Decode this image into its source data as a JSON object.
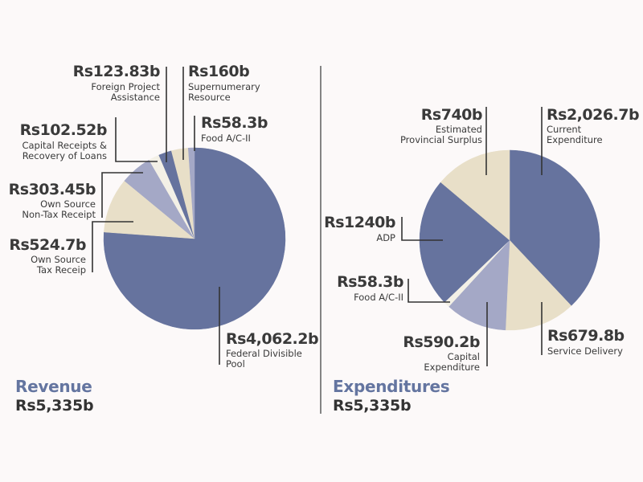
{
  "chart_data": [
    {
      "type": "pie",
      "title": "Revenue",
      "total_label": "Rs5,335b",
      "unit": "Rs billion",
      "start": "12 o'clock, clockwise",
      "slices": [
        {
          "name": "Federal Divisible Pool",
          "value": 4062.2,
          "label": "Rs4,062.2b",
          "desc": [
            "Federal Divisible",
            "Pool"
          ],
          "color": "#66739e"
        },
        {
          "name": "Own Source Tax Receip",
          "value": 524.7,
          "label": "Rs524.7b",
          "desc": [
            "Own Source",
            "Tax Receip"
          ],
          "color": "#e8dfc8"
        },
        {
          "name": "Own Source Non-Tax Receipt",
          "value": 303.45,
          "label": "Rs303.45b",
          "desc": [
            "Own Source",
            "Non-Tax Receipt"
          ],
          "color": "#a4a8c6"
        },
        {
          "name": "Capital Receipts & Recovery of Loans",
          "value": 102.52,
          "label": "Rs102.52b",
          "desc": [
            "Capital Receipts &",
            "Recovery of Loans"
          ],
          "color": "#f3f0e6"
        },
        {
          "name": "Foreign Project Assistance",
          "value": 123.83,
          "label": "Rs123.83b",
          "desc": [
            "Foreign Project",
            "Assistance"
          ],
          "color": "#66739e"
        },
        {
          "name": "Supernumerary Resource",
          "value": 160,
          "label": "Rs160b",
          "desc": [
            "Supernumerary",
            "Resource"
          ],
          "color": "#e8dfc8"
        },
        {
          "name": "Food A/C-II",
          "value": 58.3,
          "label": "Rs58.3b",
          "desc": [
            "Food A/C-II"
          ],
          "color": "#a4a8c6"
        }
      ]
    },
    {
      "type": "pie",
      "title": "Expenditures",
      "total_label": "Rs5,335b",
      "unit": "Rs billion",
      "start": "12 o'clock, clockwise",
      "slices": [
        {
          "name": "Current Expenditure",
          "value": 2026.7,
          "label": "Rs2,026.7b",
          "desc": [
            "Current",
            "Expenditure"
          ],
          "color": "#66739e"
        },
        {
          "name": "Service Delivery",
          "value": 679.8,
          "label": "Rs679.8b",
          "desc": [
            "Service Delivery"
          ],
          "color": "#e8dfc8"
        },
        {
          "name": "Capital Expenditure",
          "value": 590.2,
          "label": "Rs590.2b",
          "desc": [
            "Capital",
            "Expenditure"
          ],
          "color": "#a4a8c6"
        },
        {
          "name": "Food A/C-II",
          "value": 58.3,
          "label": "Rs58.3b",
          "desc": [
            "Food A/C-II"
          ],
          "color": "#f3f0e6"
        },
        {
          "name": "ADP",
          "value": 1240,
          "label": "Rs1240b",
          "desc": [
            "ADP"
          ],
          "color": "#66739e"
        },
        {
          "name": "Estimated Provincial Surplus",
          "value": 740,
          "label": "Rs740b",
          "desc": [
            "Estimated",
            "Provincial Surplus"
          ],
          "color": "#e8dfc8"
        }
      ]
    }
  ]
}
